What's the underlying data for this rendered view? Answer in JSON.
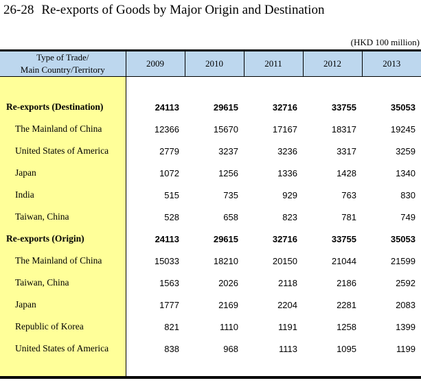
{
  "page": {
    "title_number": "26-28",
    "title_text": "Re-exports of Goods by Major Origin and Destination",
    "unit_note": "(HKD 100 million)"
  },
  "colors": {
    "header_bg": "#BDD7EE",
    "label_col_bg": "#FFFF99",
    "border": "#000000"
  },
  "table": {
    "header": {
      "col0_line1": "Type of Trade/",
      "col0_line2": "Main Country/Territory",
      "years": [
        "2009",
        "2010",
        "2011",
        "2012",
        "2013"
      ]
    },
    "rows": [
      {
        "label": "Re-exports (Destination)",
        "bold": true,
        "indent": 0,
        "values": [
          24113,
          29615,
          32716,
          33755,
          35053
        ]
      },
      {
        "label": "The Mainland of China",
        "bold": false,
        "indent": 1,
        "values": [
          12366,
          15670,
          17167,
          18317,
          19245
        ]
      },
      {
        "label": "United States of America",
        "bold": false,
        "indent": 1,
        "values": [
          2779,
          3237,
          3236,
          3317,
          3259
        ]
      },
      {
        "label": "Japan",
        "bold": false,
        "indent": 1,
        "values": [
          1072,
          1256,
          1336,
          1428,
          1340
        ]
      },
      {
        "label": "India",
        "bold": false,
        "indent": 1,
        "values": [
          515,
          735,
          929,
          763,
          830
        ]
      },
      {
        "label": "Taiwan, China",
        "bold": false,
        "indent": 1,
        "values": [
          528,
          658,
          823,
          781,
          749
        ]
      },
      {
        "label": "Re-exports (Origin)",
        "bold": true,
        "indent": 0,
        "values": [
          24113,
          29615,
          32716,
          33755,
          35053
        ]
      },
      {
        "label": "The Mainland of China",
        "bold": false,
        "indent": 1,
        "values": [
          15033,
          18210,
          20150,
          21044,
          21599
        ]
      },
      {
        "label": "Taiwan, China",
        "bold": false,
        "indent": 1,
        "values": [
          1563,
          2026,
          2118,
          2186,
          2592
        ]
      },
      {
        "label": "Japan",
        "bold": false,
        "indent": 1,
        "values": [
          1777,
          2169,
          2204,
          2281,
          2083
        ]
      },
      {
        "label": "Republic of Korea",
        "bold": false,
        "indent": 1,
        "values": [
          821,
          1110,
          1191,
          1258,
          1399
        ]
      },
      {
        "label": "United States of America",
        "bold": false,
        "indent": 1,
        "values": [
          838,
          968,
          1113,
          1095,
          1199
        ]
      }
    ]
  }
}
